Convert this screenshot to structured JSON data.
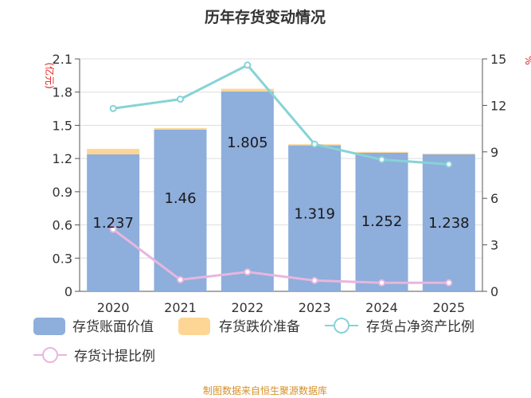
{
  "title": "历年存货变动情况",
  "source": "制图数据来自恒生聚源数据库",
  "colors": {
    "book_value": "#8eaedc",
    "provision": "#fdd695",
    "ratio_net_assets": "#86d3d6",
    "provision_ratio": "#e8b6de",
    "unit": "#e02020",
    "source": "#d4902a"
  },
  "chart_data": {
    "type": "bar",
    "title": "历年存货变动情况",
    "categories": [
      "2020",
      "2021",
      "2022",
      "2023",
      "2024",
      "2025"
    ],
    "left_axis": {
      "unit": "(亿元)",
      "ylim": [
        0,
        2.1
      ],
      "ticks": [
        "0",
        "0.3",
        "0.6",
        "0.9",
        "1.2",
        "1.5",
        "1.8",
        "2.1"
      ]
    },
    "right_axis": {
      "unit": "%",
      "ylim": [
        0,
        15
      ],
      "ticks": [
        "0",
        "3",
        "6",
        "9",
        "12",
        "15"
      ]
    },
    "series": [
      {
        "name": "存货账面价值",
        "kind": "bar",
        "axis": "left",
        "stack": "total",
        "values": [
          1.237,
          1.46,
          1.805,
          1.319,
          1.252,
          1.238
        ],
        "labels": [
          "1.237",
          "1.46",
          "1.805",
          "1.319",
          "1.252",
          "1.238"
        ]
      },
      {
        "name": "存货跌价准备",
        "kind": "bar",
        "axis": "left",
        "stack": "total",
        "values": [
          0.05,
          0.015,
          0.025,
          0.01,
          0.008,
          0.006
        ]
      },
      {
        "name": "存货占净资产比例",
        "kind": "line",
        "axis": "right",
        "values": [
          11.8,
          12.4,
          14.6,
          9.5,
          8.5,
          8.2
        ]
      },
      {
        "name": "存货计提比例",
        "kind": "line",
        "axis": "right",
        "values": [
          4.0,
          0.75,
          1.25,
          0.7,
          0.55,
          0.55
        ]
      }
    ],
    "grid": true,
    "legend": "bottom"
  }
}
